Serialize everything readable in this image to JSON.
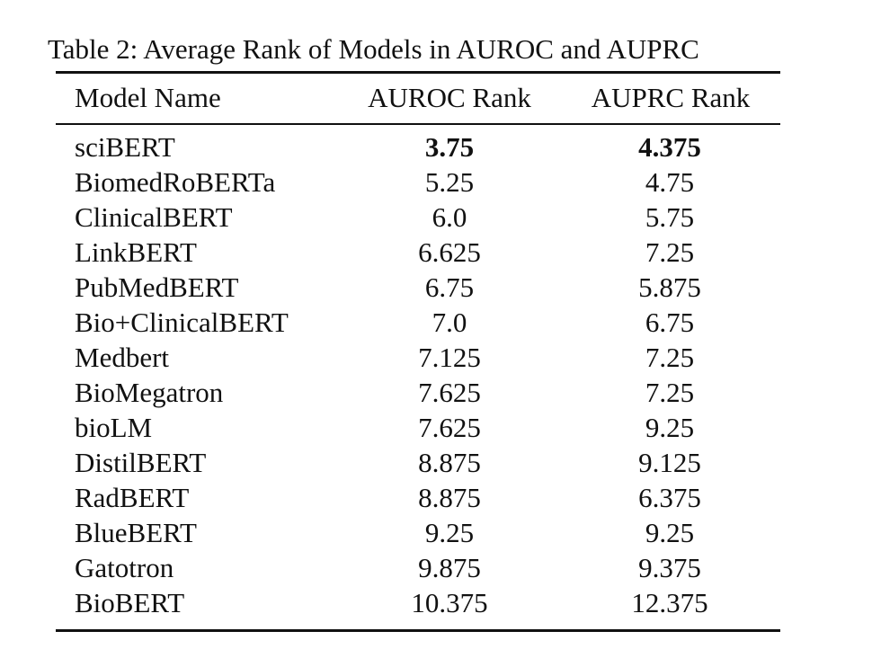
{
  "table": {
    "caption": "Table 2: Average Rank of Models in AUROC and AUPRC",
    "columns": [
      "Model Name",
      "AUROC Rank",
      "AUPRC Rank"
    ],
    "rows": [
      {
        "model": "sciBERT",
        "auroc": "3.75",
        "auprc": "4.375",
        "best": true
      },
      {
        "model": "BiomedRoBERTa",
        "auroc": "5.25",
        "auprc": "4.75"
      },
      {
        "model": "ClinicalBERT",
        "auroc": "6.0",
        "auprc": "5.75"
      },
      {
        "model": "LinkBERT",
        "auroc": "6.625",
        "auprc": "7.25"
      },
      {
        "model": "PubMedBERT",
        "auroc": "6.75",
        "auprc": "5.875"
      },
      {
        "model": "Bio+ClinicalBERT",
        "auroc": "7.0",
        "auprc": "6.75"
      },
      {
        "model": "Medbert",
        "auroc": "7.125",
        "auprc": "7.25"
      },
      {
        "model": "BioMegatron",
        "auroc": "7.625",
        "auprc": "7.25"
      },
      {
        "model": "bioLM",
        "auroc": "7.625",
        "auprc": "9.25"
      },
      {
        "model": "DistilBERT",
        "auroc": "8.875",
        "auprc": "9.125"
      },
      {
        "model": "RadBERT",
        "auroc": "8.875",
        "auprc": "6.375"
      },
      {
        "model": "BlueBERT",
        "auroc": "9.25",
        "auprc": "9.25"
      },
      {
        "model": "Gatotron",
        "auroc": "9.875",
        "auprc": "9.375"
      },
      {
        "model": "BioBERT",
        "auroc": "10.375",
        "auprc": "12.375"
      }
    ]
  }
}
